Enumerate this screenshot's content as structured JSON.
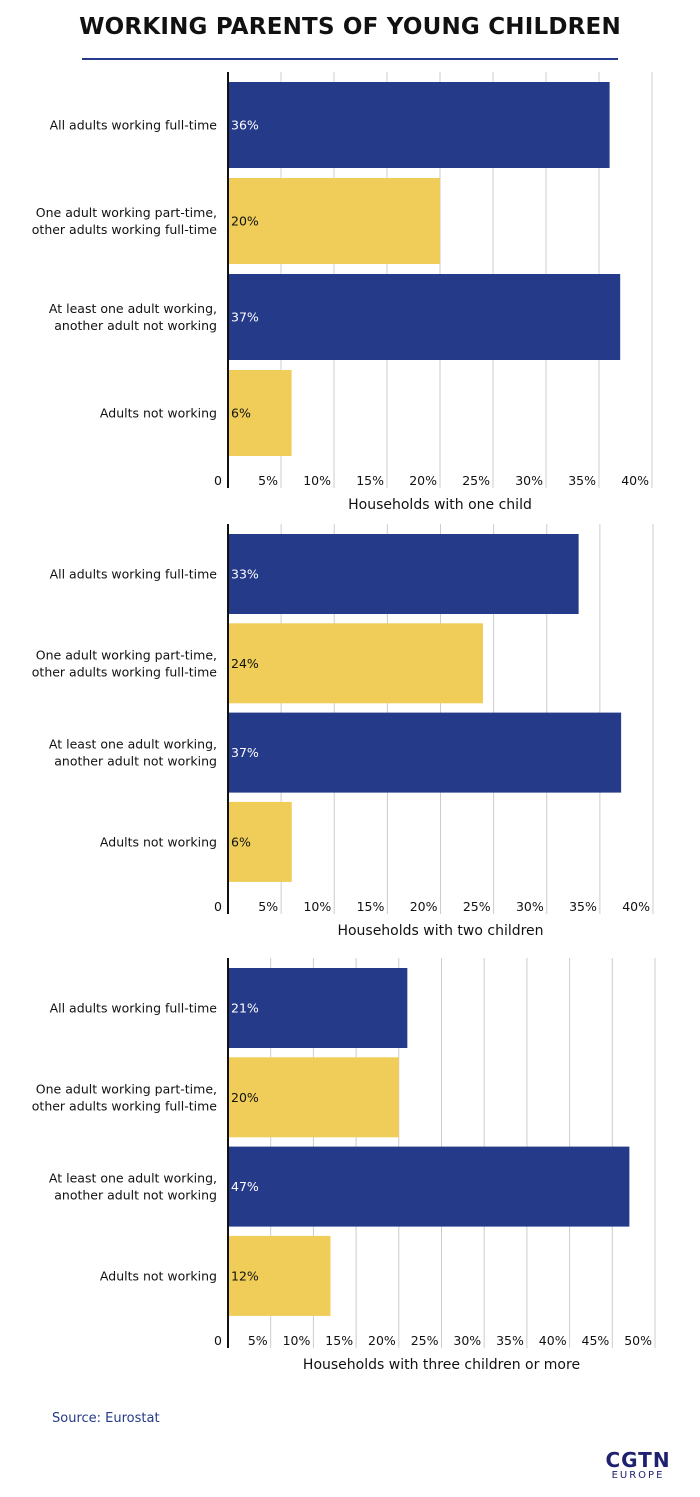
{
  "title": "WORKING PARENTS OF YOUNG CHILDREN",
  "source": "Source: Eurostat",
  "logo": {
    "main": "CGTN",
    "sub": "EUROPE"
  },
  "colors": {
    "navy": "#253a88",
    "yellow": "#efcd58",
    "rule": "#253a88",
    "grid": "#cccccc"
  },
  "chart_data": [
    {
      "type": "bar",
      "orientation": "horizontal",
      "xlabel": "Households with one child",
      "categories": [
        "All adults working full-time",
        "One adult working part-time, other adults working full-time",
        "At least one adult working, another adult not working",
        "Adults not working"
      ],
      "category_lines": [
        [
          "All adults working full-time"
        ],
        [
          "One adult working part-time,",
          "other adults working full-time"
        ],
        [
          "At least one adult working,",
          "another adult not working"
        ],
        [
          "Adults not working"
        ]
      ],
      "values": [
        36,
        20,
        37,
        6
      ],
      "data_labels": [
        "36%",
        "20%",
        "37%",
        "6%"
      ],
      "bar_colors": [
        "#253a88",
        "#efcd58",
        "#253a88",
        "#efcd58"
      ],
      "xlim": [
        0,
        40
      ],
      "ticks": [
        0,
        5,
        10,
        15,
        20,
        25,
        30,
        35,
        40
      ],
      "tick_labels": [
        "0",
        "5%",
        "10%",
        "15%",
        "20%",
        "25%",
        "30%",
        "35%",
        "40%"
      ],
      "grid": true
    },
    {
      "type": "bar",
      "orientation": "horizontal",
      "xlabel": "Households with two children",
      "categories": [
        "All adults working full-time",
        "One adult working part-time, other adults working full-time",
        "At least one adult working, another adult not working",
        "Adults not working"
      ],
      "category_lines": [
        [
          "All adults working full-time"
        ],
        [
          "One adult working part-time,",
          "other adults working full-time"
        ],
        [
          "At least one adult working,",
          "another adult not working"
        ],
        [
          "Adults not working"
        ]
      ],
      "values": [
        33,
        24,
        37,
        6
      ],
      "data_labels": [
        "33%",
        "24%",
        "37%",
        "6%"
      ],
      "bar_colors": [
        "#253a88",
        "#efcd58",
        "#253a88",
        "#efcd58"
      ],
      "xlim": [
        0,
        40
      ],
      "ticks": [
        0,
        5,
        10,
        15,
        20,
        25,
        30,
        35,
        40
      ],
      "tick_labels": [
        "0",
        "5%",
        "10%",
        "15%",
        "20%",
        "25%",
        "30%",
        "35%",
        "40%"
      ],
      "grid": true
    },
    {
      "type": "bar",
      "orientation": "horizontal",
      "xlabel": "Households with three children or more",
      "categories": [
        "All adults working full-time",
        "One adult working part-time, other adults working full-time",
        "At least one adult working, another adult not working",
        "Adults not working"
      ],
      "category_lines": [
        [
          "All adults working full-time"
        ],
        [
          "One adult working part-time,",
          "other adults working full-time"
        ],
        [
          "At least one adult working,",
          "another adult not working"
        ],
        [
          "Adults not working"
        ]
      ],
      "values": [
        21,
        20,
        47,
        12
      ],
      "data_labels": [
        "21%",
        "20%",
        "47%",
        "12%"
      ],
      "bar_colors": [
        "#253a88",
        "#efcd58",
        "#253a88",
        "#efcd58"
      ],
      "xlim": [
        0,
        50
      ],
      "ticks": [
        0,
        5,
        10,
        15,
        20,
        25,
        30,
        35,
        40,
        45,
        50
      ],
      "tick_labels": [
        "0",
        "5%",
        "10%",
        "15%",
        "20%",
        "25%",
        "30%",
        "35%",
        "40%",
        "45%",
        "50%"
      ],
      "grid": true
    }
  ]
}
